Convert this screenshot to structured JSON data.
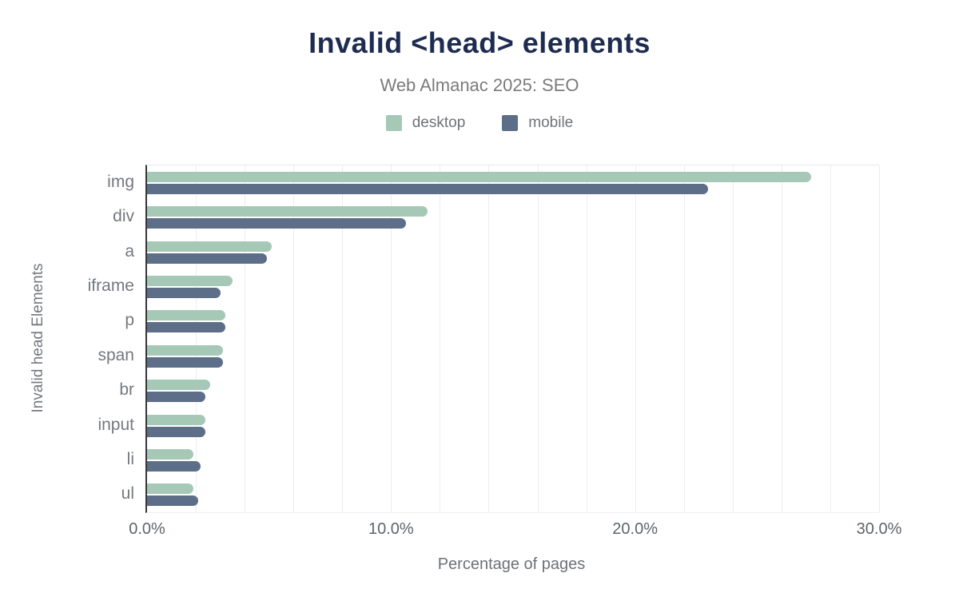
{
  "header": {
    "title": "Invalid <head> elements",
    "subtitle": "Web Almanac 2025: SEO"
  },
  "chart_data": {
    "type": "bar",
    "orientation": "horizontal",
    "title": "Invalid <head> elements",
    "subtitle": "Web Almanac 2025: SEO",
    "categories": [
      "img",
      "div",
      "a",
      "iframe",
      "p",
      "span",
      "br",
      "input",
      "li",
      "ul"
    ],
    "series": [
      {
        "name": "desktop",
        "color": "#a6c9b7",
        "values": [
          27.2,
          11.5,
          5.1,
          3.5,
          3.2,
          3.1,
          2.6,
          2.4,
          1.9,
          1.9
        ]
      },
      {
        "name": "mobile",
        "color": "#5d6e88",
        "values": [
          23.0,
          10.6,
          4.9,
          3.0,
          3.2,
          3.1,
          2.4,
          2.4,
          2.2,
          2.1
        ]
      }
    ],
    "xlabel": "Percentage of pages",
    "ylabel": "Invalid head Elements",
    "xlim": [
      0,
      30
    ],
    "xticks": [
      0,
      10,
      20,
      30
    ],
    "xtick_labels": [
      "0.0%",
      "10.0%",
      "20.0%",
      "30.0%"
    ],
    "grid_step": 2,
    "grid": true,
    "legend_position": "top"
  },
  "colors": {
    "title": "#1d2c50",
    "subtitle": "#7b7b7b",
    "axis_line": "#33363c",
    "gridline": "#ededed",
    "tick_label": "#5f646b",
    "category_label": "#74787e"
  }
}
